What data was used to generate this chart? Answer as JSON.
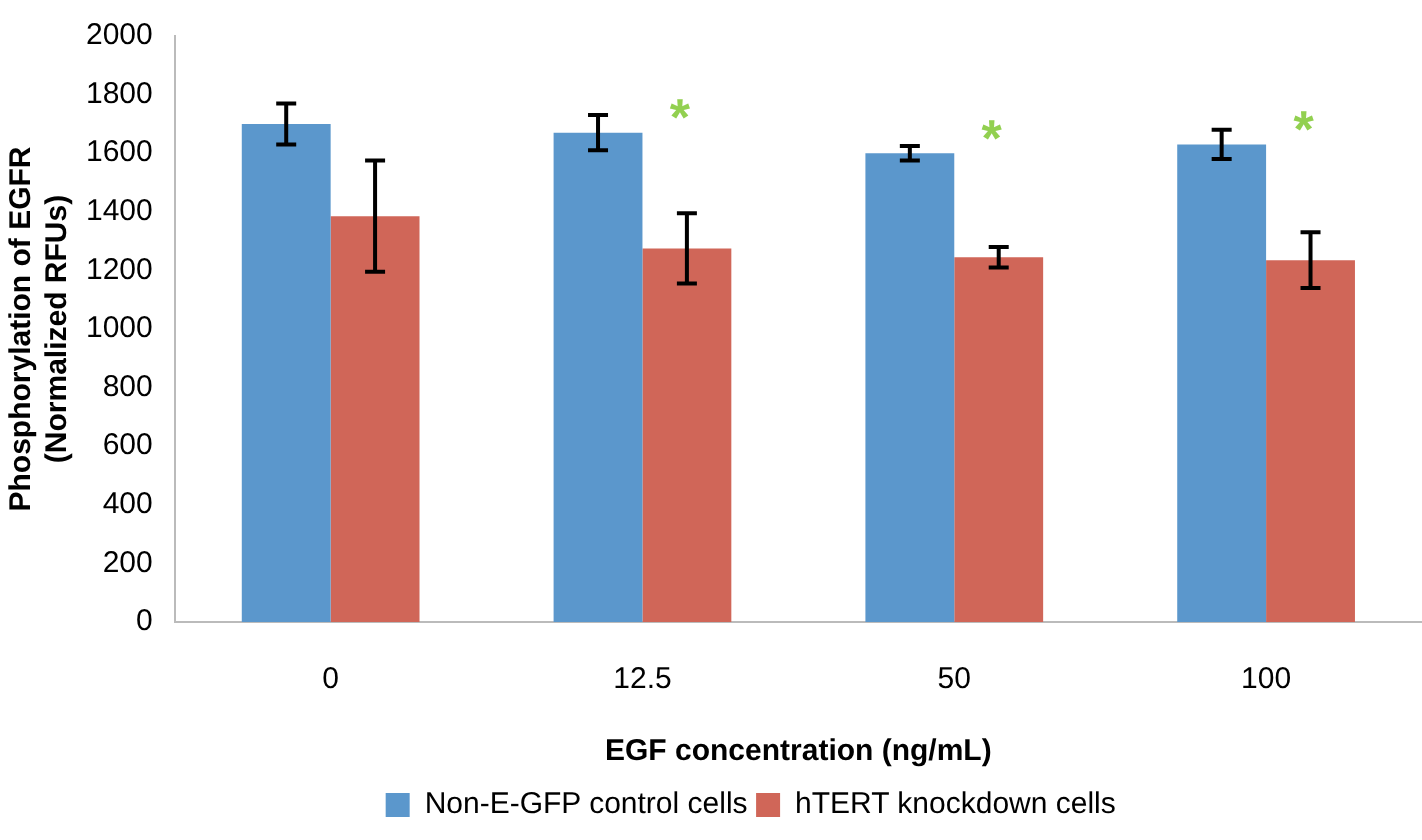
{
  "chart_data": {
    "type": "bar",
    "xlabel": "EGF concentration (ng/mL)",
    "ylabel": "Phosphorylation of EGFR\n(Normalized RFUs)",
    "categories": [
      "0",
      "12.5",
      "50",
      "100"
    ],
    "series": [
      {
        "name": "Non-E-GFP control cells",
        "color": "#5b97cc",
        "values": [
          1700,
          1670,
          1600,
          1630
        ],
        "errors": [
          70,
          60,
          25,
          50
        ]
      },
      {
        "name": "hTERT knockdown cells",
        "color": "#d06658",
        "values": [
          1385,
          1275,
          1245,
          1235
        ],
        "errors": [
          190,
          120,
          35,
          95
        ]
      }
    ],
    "ylim": [
      0,
      2000
    ],
    "yticks": [
      0,
      200,
      400,
      600,
      800,
      1000,
      1200,
      1400,
      1600,
      1800,
      2000
    ],
    "grid": false,
    "legend": "bottom",
    "annotations": [
      {
        "text": "*",
        "x": "12.5",
        "y": 1670
      },
      {
        "text": "*",
        "x": "50",
        "y": 1600
      },
      {
        "text": "*",
        "x": "100",
        "y": 1630
      }
    ]
  }
}
